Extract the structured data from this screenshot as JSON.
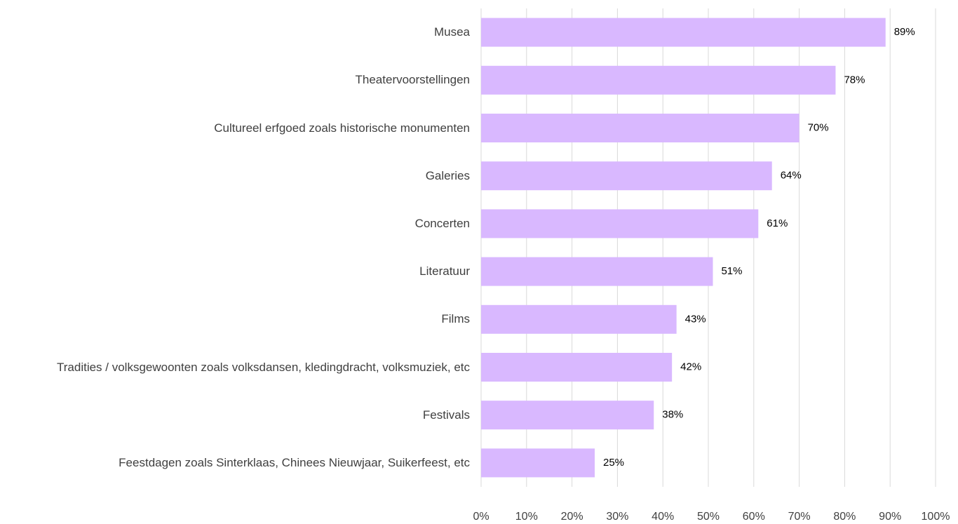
{
  "chart_data": {
    "type": "bar",
    "orientation": "horizontal",
    "categories": [
      "Musea",
      "Theatervoorstellingen",
      "Cultureel erfgoed zoals historische monumenten",
      "Galeries",
      "Concerten",
      "Literatuur",
      "Films",
      "Tradities / volksgewoonten zoals volksdansen, kledingdracht, volksmuziek, etc",
      "Festivals",
      "Feestdagen zoals Sinterklaas, Chinees Nieuwjaar, Suikerfeest, etc"
    ],
    "values": [
      89,
      78,
      70,
      64,
      61,
      51,
      43,
      42,
      38,
      25
    ],
    "value_labels": [
      "89%",
      "78%",
      "70%",
      "64%",
      "61%",
      "51%",
      "43%",
      "42%",
      "38%",
      "25%"
    ],
    "color": "#d9b8ff",
    "xlim": [
      0,
      100
    ],
    "xticks": [
      {
        "value": 0,
        "label": "0%"
      },
      {
        "value": 10,
        "label": "10%"
      },
      {
        "value": 20,
        "label": "20%"
      },
      {
        "value": 30,
        "label": "30%"
      },
      {
        "value": 40,
        "label": "40%"
      },
      {
        "value": 50,
        "label": "50%"
      },
      {
        "value": 60,
        "label": "60%"
      },
      {
        "value": 70,
        "label": "70%"
      },
      {
        "value": 80,
        "label": "80%"
      },
      {
        "value": 90,
        "label": "90%"
      },
      {
        "value": 100,
        "label": "100%"
      }
    ],
    "grid": true
  }
}
